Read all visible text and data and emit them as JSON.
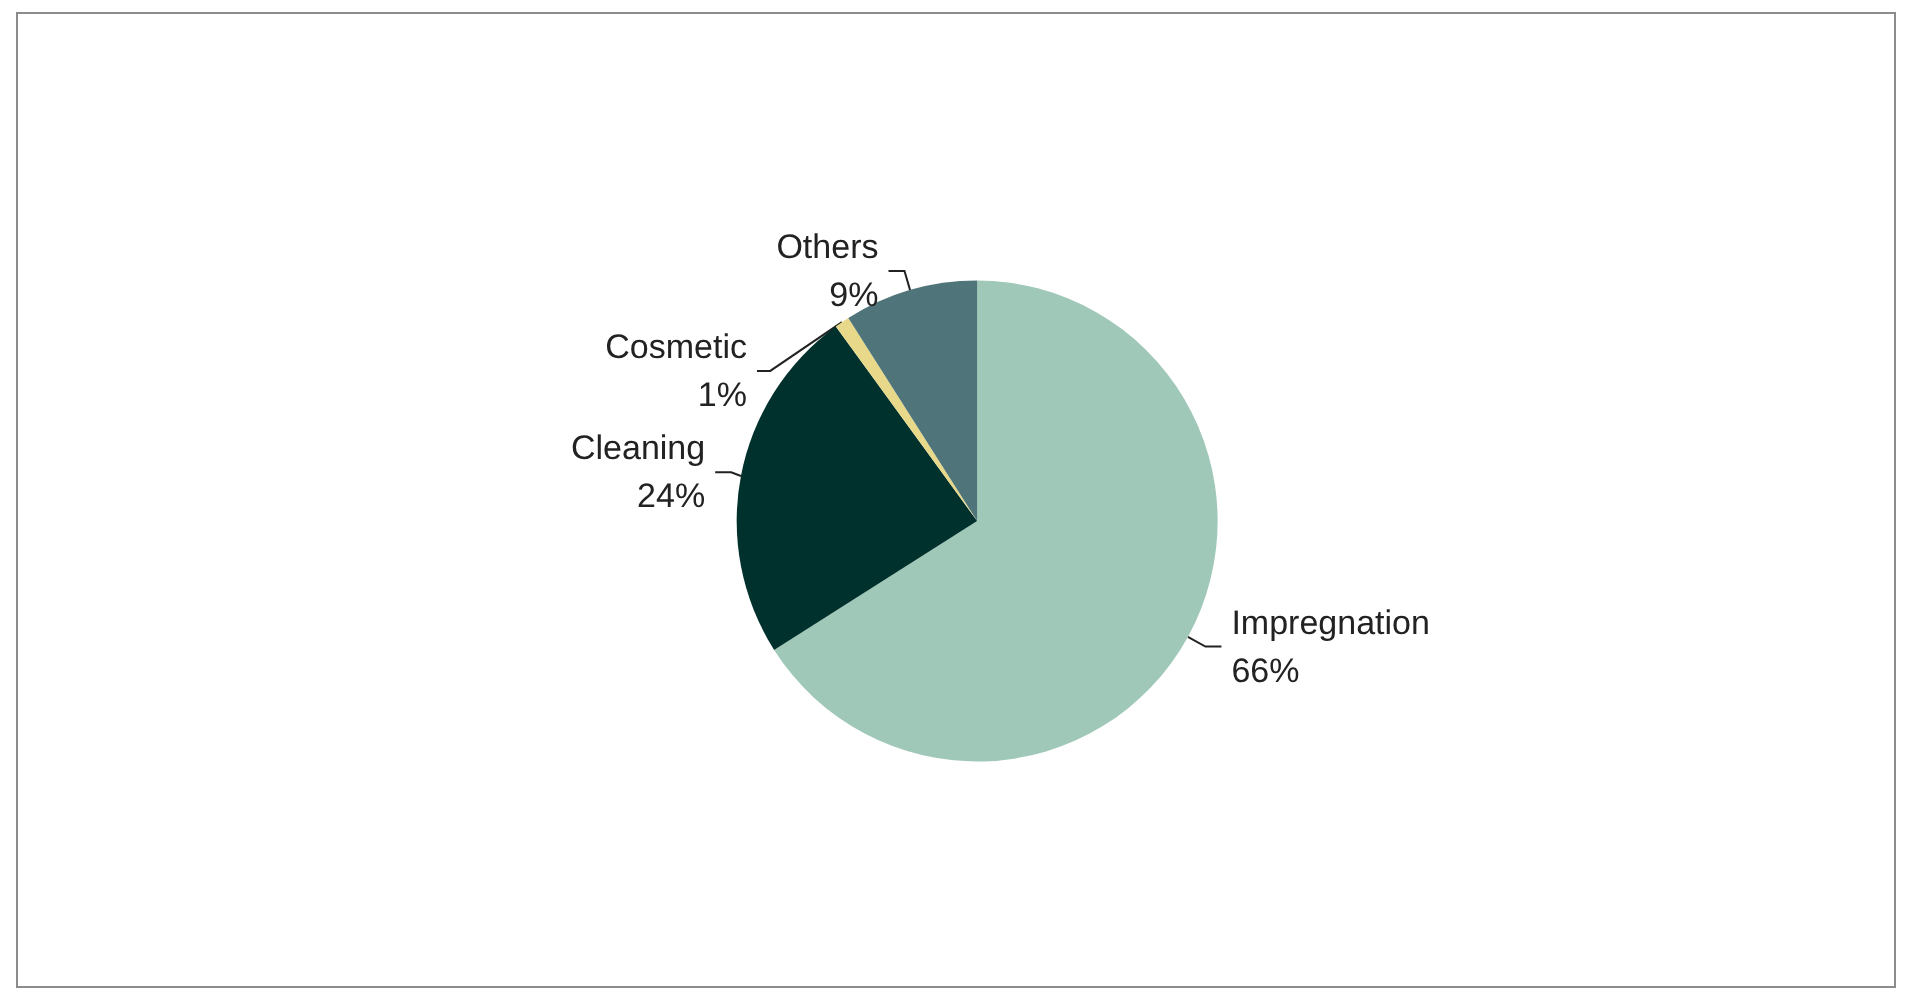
{
  "chart_data": {
    "type": "pie",
    "categories": [
      "Impregnation",
      "Cleaning",
      "Cosmetic",
      "Others"
    ],
    "values": [
      66,
      24,
      1,
      9
    ],
    "value_labels": [
      "66%",
      "24%",
      "1%",
      "9%"
    ],
    "colors": [
      "#a0c8b8",
      "#01312c",
      "#e8d98a",
      "#4f7479"
    ],
    "legend": false
  }
}
